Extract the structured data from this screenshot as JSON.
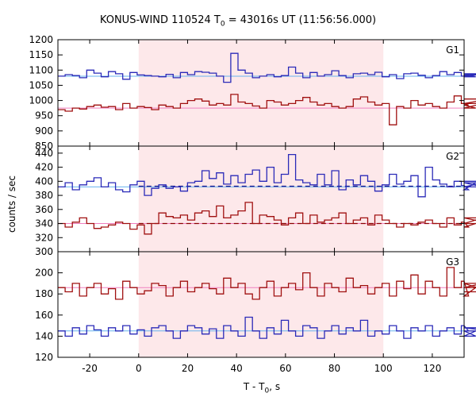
{
  "chart_data": {
    "type": "line",
    "title_pre": "KONUS-WIND 110524 T",
    "title_sub": "0",
    "title_post": " = 43016s UT (11:56:56.000)",
    "ylabel": "counts / sec",
    "xlabel_pre": "T - T",
    "xlabel_sub": "0",
    "xlabel_post": ", s",
    "xlim": [
      -33,
      133
    ],
    "x_ticks": [
      -20,
      0,
      20,
      40,
      60,
      80,
      100,
      120
    ],
    "highlight_interval": [
      0,
      100
    ],
    "colors": {
      "highlight": "#fde8ea",
      "blue": "#2a2ab8",
      "red": "#a01010",
      "cyan_bg": "#66b3ee",
      "pink_bg": "#f080c0",
      "navy_bg": "#1a1a90",
      "darkred_bg": "#8a0000",
      "frame": "#000000"
    },
    "bin_width": 2.944,
    "x_start": -33,
    "panels": [
      {
        "label": "G1",
        "ylim": [
          850,
          1200
        ],
        "yticks": [
          850,
          900,
          950,
          1000,
          1050,
          1100,
          1150,
          1200
        ],
        "series": [
          {
            "color": "blue",
            "bg_level": 1080,
            "bg_color": "cyan_bg",
            "values": [
              1080,
              1085,
              1082,
              1075,
              1100,
              1090,
              1078,
              1095,
              1088,
              1070,
              1092,
              1084,
              1082,
              1080,
              1078,
              1086,
              1075,
              1092,
              1085,
              1095,
              1093,
              1090,
              1080,
              1060,
              1155,
              1100,
              1090,
              1075,
              1080,
              1085,
              1078,
              1082,
              1110,
              1090,
              1075,
              1092,
              1080,
              1085,
              1098,
              1082,
              1075,
              1088,
              1090,
              1085,
              1093,
              1078,
              1085,
              1072,
              1088,
              1090,
              1083,
              1075,
              1082,
              1095,
              1085,
              1092,
              1080,
              1084,
              1078,
              1088,
              1085
            ]
          },
          {
            "color": "red",
            "bg_level": 975,
            "bg_color": "pink_bg",
            "values": [
              970,
              965,
              975,
              972,
              980,
              985,
              978,
              980,
              970,
              990,
              975,
              980,
              977,
              970,
              985,
              980,
              975,
              990,
              1000,
              1005,
              998,
              985,
              990,
              985,
              1020,
              995,
              990,
              982,
              975,
              1000,
              995,
              985,
              990,
              1000,
              1010,
              995,
              985,
              990,
              980,
              975,
              980,
              1005,
              1012,
              995,
              985,
              990,
              920,
              980,
              975,
              1000,
              985,
              990,
              980,
              975,
              995,
              1015,
              990,
              985,
              975,
              990,
              1005
            ]
          }
        ]
      },
      {
        "label": "G2",
        "ylim": [
          300,
          450
        ],
        "yticks": [
          300,
          320,
          340,
          360,
          380,
          400,
          420,
          440
        ],
        "series": [
          {
            "color": "blue",
            "bg_level": 392,
            "bg_color": "cyan_bg",
            "dashed_level": 393,
            "dashed_color": "navy_bg",
            "values": [
              392,
              398,
              388,
              395,
              400,
              405,
              392,
              398,
              388,
              385,
              395,
              400,
              380,
              390,
              395,
              390,
              392,
              386,
              398,
              400,
              415,
              404,
              412,
              396,
              408,
              398,
              410,
              416,
              400,
              420,
              398,
              410,
              438,
              402,
              398,
              395,
              410,
              395,
              415,
              388,
              402,
              395,
              408,
              400,
              386,
              395,
              410,
              396,
              400,
              408,
              378,
              420,
              402,
              396,
              392,
              400,
              394,
              388,
              398,
              392,
              400
            ]
          },
          {
            "color": "red",
            "bg_level": 340,
            "bg_color": "pink_bg",
            "dashed_level": 340,
            "dashed_color": "darkred_bg",
            "values": [
              340,
              335,
              342,
              348,
              340,
              333,
              335,
              338,
              342,
              340,
              332,
              338,
              325,
              340,
              355,
              350,
              348,
              352,
              345,
              355,
              358,
              350,
              365,
              348,
              352,
              358,
              370,
              340,
              352,
              350,
              345,
              338,
              348,
              355,
              340,
              352,
              342,
              345,
              348,
              355,
              340,
              345,
              348,
              338,
              352,
              345,
              340,
              335,
              340,
              338,
              342,
              345,
              340,
              335,
              348,
              338,
              342,
              335,
              340,
              348,
              340
            ]
          }
        ]
      },
      {
        "label": "G3",
        "ylim": [
          120,
          220
        ],
        "yticks": [
          120,
          140,
          160,
          180,
          200
        ],
        "series": [
          {
            "color": "red",
            "bg_level": 186,
            "bg_color": "pink_bg",
            "values": [
              186,
              182,
              190,
              178,
              186,
              190,
              180,
              185,
              175,
              192,
              186,
              180,
              183,
              190,
              188,
              178,
              186,
              192,
              182,
              186,
              190,
              185,
              180,
              195,
              186,
              190,
              180,
              175,
              186,
              192,
              178,
              186,
              190,
              184,
              200,
              186,
              178,
              190,
              186,
              182,
              195,
              186,
              188,
              180,
              186,
              190,
              178,
              192,
              185,
              198,
              180,
              192,
              186,
              178,
              205,
              186,
              192,
              178,
              186,
              190,
              182
            ]
          },
          {
            "color": "blue",
            "bg_level": 145,
            "bg_color": "cyan_bg",
            "values": [
              145,
              140,
              148,
              142,
              150,
              146,
              140,
              148,
              145,
              150,
              142,
              146,
              140,
              148,
              150,
              145,
              138,
              145,
              150,
              148,
              142,
              147,
              138,
              150,
              145,
              140,
              158,
              145,
              138,
              148,
              142,
              155,
              145,
              140,
              150,
              148,
              138,
              145,
              150,
              142,
              148,
              145,
              155,
              140,
              145,
              142,
              150,
              145,
              138,
              148,
              145,
              150,
              140,
              145,
              148,
              142,
              150,
              145,
              140,
              148,
              145
            ]
          }
        ]
      }
    ]
  }
}
